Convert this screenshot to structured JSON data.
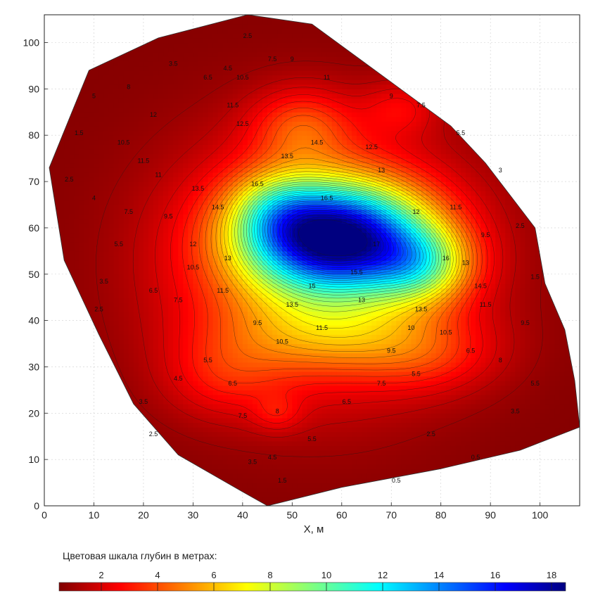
{
  "chart_data": {
    "type": "heatmap",
    "subtype": "filled-contour",
    "xlabel": "X, м",
    "ylabel": "",
    "xlim": [
      0,
      108
    ],
    "ylim": [
      0,
      106
    ],
    "x_ticks": [
      0,
      10,
      20,
      30,
      40,
      50,
      60,
      70,
      80,
      90,
      100
    ],
    "y_ticks": [
      0,
      10,
      20,
      30,
      40,
      50,
      60,
      70,
      80,
      90,
      100
    ],
    "grid": true,
    "colormap": "jet",
    "colorbar": {
      "title": "Цветовая шкала глубин в метрах:",
      "range": [
        0.5,
        18.5
      ],
      "ticks": [
        2,
        4,
        6,
        8,
        10,
        12,
        14,
        16,
        18
      ]
    },
    "boundary": [
      [
        41,
        106
      ],
      [
        54,
        104
      ],
      [
        82,
        82
      ],
      [
        89,
        74
      ],
      [
        99,
        60
      ],
      [
        101,
        48
      ],
      [
        105,
        38
      ],
      [
        107,
        27
      ],
      [
        108,
        17
      ],
      [
        96,
        12
      ],
      [
        80,
        8
      ],
      [
        60,
        4
      ],
      [
        45,
        0
      ],
      [
        40,
        3
      ],
      [
        27,
        11
      ],
      [
        18,
        22
      ],
      [
        11,
        37
      ],
      [
        4,
        53
      ],
      [
        1,
        73
      ],
      [
        9,
        94
      ],
      [
        23,
        101
      ]
    ],
    "depth_field": {
      "base": 0.6,
      "components": [
        {
          "x": 59,
          "y": 58,
          "sx": 17,
          "sy": 11,
          "peak": 14.5
        },
        {
          "x": 76,
          "y": 52,
          "sx": 10,
          "sy": 8,
          "peak": 5
        },
        {
          "x": 47,
          "y": 64,
          "sx": 9,
          "sy": 8,
          "peak": 3
        },
        {
          "x": 55,
          "y": 52,
          "sx": 28,
          "sy": 26,
          "peak": 5
        },
        {
          "x": 52,
          "y": 82,
          "sx": 10,
          "sy": 8,
          "peak": 2.5
        },
        {
          "x": 72,
          "y": 86,
          "sx": 8,
          "sy": 6,
          "peak": 1.5
        },
        {
          "x": 60,
          "y": 37,
          "sx": 22,
          "sy": 8,
          "peak": 2
        },
        {
          "x": 78,
          "y": 32,
          "sx": 14,
          "sy": 8,
          "peak": 1.5
        },
        {
          "x": 36,
          "y": 28,
          "sx": 12,
          "sy": 9,
          "peak": 1.5
        },
        {
          "x": 47,
          "y": 20,
          "sx": 5,
          "sy": 4,
          "peak": 1.2
        }
      ]
    },
    "contour_interval": 0.5,
    "contour_labels": [
      {
        "x": 57,
        "y": 66,
        "t": "16.5"
      },
      {
        "x": 67,
        "y": 56,
        "t": "17"
      },
      {
        "x": 81,
        "y": 53,
        "t": "16"
      },
      {
        "x": 55,
        "y": 78,
        "t": "14.5"
      },
      {
        "x": 49,
        "y": 75,
        "t": "13.5"
      },
      {
        "x": 43,
        "y": 69,
        "t": "16.5"
      },
      {
        "x": 35,
        "y": 64,
        "t": "14.5"
      },
      {
        "x": 31,
        "y": 68,
        "t": "13.5"
      },
      {
        "x": 37,
        "y": 53,
        "t": "13"
      },
      {
        "x": 30,
        "y": 56,
        "t": "12"
      },
      {
        "x": 40,
        "y": 82,
        "t": "12.5"
      },
      {
        "x": 38,
        "y": 86,
        "t": "11.5"
      },
      {
        "x": 40,
        "y": 92,
        "t": "10.5"
      },
      {
        "x": 50,
        "y": 96,
        "t": "9"
      },
      {
        "x": 57,
        "y": 92,
        "t": "11"
      },
      {
        "x": 70,
        "y": 88,
        "t": "9"
      },
      {
        "x": 76,
        "y": 86,
        "t": "7.5"
      },
      {
        "x": 84,
        "y": 80,
        "t": "5.5"
      },
      {
        "x": 92,
        "y": 72,
        "t": "3"
      },
      {
        "x": 96,
        "y": 60,
        "t": "2.5"
      },
      {
        "x": 99,
        "y": 49,
        "t": "1.5"
      },
      {
        "x": 97,
        "y": 39,
        "t": "9.5"
      },
      {
        "x": 89,
        "y": 43,
        "t": "11.5"
      },
      {
        "x": 85,
        "y": 52,
        "t": "13"
      },
      {
        "x": 89,
        "y": 58,
        "t": "9.5"
      },
      {
        "x": 83,
        "y": 64,
        "t": "11.5"
      },
      {
        "x": 75,
        "y": 63,
        "t": "12"
      },
      {
        "x": 68,
        "y": 72,
        "t": "13"
      },
      {
        "x": 66,
        "y": 77,
        "t": "12.5"
      },
      {
        "x": 64,
        "y": 44,
        "t": "13"
      },
      {
        "x": 56,
        "y": 38,
        "t": "11.5"
      },
      {
        "x": 48,
        "y": 35,
        "t": "10.5"
      },
      {
        "x": 43,
        "y": 39,
        "t": "9.5"
      },
      {
        "x": 36,
        "y": 46,
        "t": "11.5"
      },
      {
        "x": 30,
        "y": 51,
        "t": "10.5"
      },
      {
        "x": 27,
        "y": 44,
        "t": "7.5"
      },
      {
        "x": 22,
        "y": 46,
        "t": "6.5"
      },
      {
        "x": 25,
        "y": 62,
        "t": "9.5"
      },
      {
        "x": 23,
        "y": 71,
        "t": "11"
      },
      {
        "x": 20,
        "y": 74,
        "t": "11.5"
      },
      {
        "x": 16,
        "y": 78,
        "t": "10.5"
      },
      {
        "x": 17,
        "y": 63,
        "t": "7.5"
      },
      {
        "x": 15,
        "y": 56,
        "t": "5.5"
      },
      {
        "x": 12,
        "y": 48,
        "t": "3.5"
      },
      {
        "x": 11,
        "y": 42,
        "t": "2.5"
      },
      {
        "x": 10,
        "y": 66,
        "t": "4"
      },
      {
        "x": 5,
        "y": 70,
        "t": "2.5"
      },
      {
        "x": 7,
        "y": 80,
        "t": "1.5"
      },
      {
        "x": 10,
        "y": 88,
        "t": "5"
      },
      {
        "x": 17,
        "y": 90,
        "t": "8"
      },
      {
        "x": 22,
        "y": 84,
        "t": "12"
      },
      {
        "x": 26,
        "y": 95,
        "t": "3.5"
      },
      {
        "x": 33,
        "y": 92,
        "t": "6.5"
      },
      {
        "x": 41,
        "y": 101,
        "t": "2.5"
      },
      {
        "x": 46,
        "y": 96,
        "t": "7.5"
      },
      {
        "x": 37,
        "y": 94,
        "t": "4.5"
      },
      {
        "x": 20,
        "y": 22,
        "t": "3.5"
      },
      {
        "x": 22,
        "y": 15,
        "t": "2.5"
      },
      {
        "x": 27,
        "y": 27,
        "t": "4.5"
      },
      {
        "x": 33,
        "y": 31,
        "t": "5.5"
      },
      {
        "x": 38,
        "y": 26,
        "t": "6.5"
      },
      {
        "x": 40,
        "y": 19,
        "t": "7.5"
      },
      {
        "x": 47,
        "y": 20,
        "t": "8"
      },
      {
        "x": 54,
        "y": 14,
        "t": "5.5"
      },
      {
        "x": 46,
        "y": 10,
        "t": "4.5"
      },
      {
        "x": 42,
        "y": 9,
        "t": "3.5"
      },
      {
        "x": 48,
        "y": 5,
        "t": "1.5"
      },
      {
        "x": 61,
        "y": 22,
        "t": "6.5"
      },
      {
        "x": 68,
        "y": 26,
        "t": "7.5"
      },
      {
        "x": 75,
        "y": 28,
        "t": "5.5"
      },
      {
        "x": 78,
        "y": 15,
        "t": "2.5"
      },
      {
        "x": 71,
        "y": 5,
        "t": "0.5"
      },
      {
        "x": 87,
        "y": 10,
        "t": "0.5"
      },
      {
        "x": 95,
        "y": 20,
        "t": "3.5"
      },
      {
        "x": 99,
        "y": 26,
        "t": "5.5"
      },
      {
        "x": 92,
        "y": 31,
        "t": "8"
      },
      {
        "x": 86,
        "y": 33,
        "t": "6.5"
      },
      {
        "x": 81,
        "y": 37,
        "t": "10.5"
      },
      {
        "x": 74,
        "y": 38,
        "t": "10"
      },
      {
        "x": 70,
        "y": 33,
        "t": "9.5"
      },
      {
        "x": 88,
        "y": 47,
        "t": "14.5"
      },
      {
        "x": 76,
        "y": 42,
        "t": "13.5"
      },
      {
        "x": 63,
        "y": 50,
        "t": "15.5"
      },
      {
        "x": 54,
        "y": 47,
        "t": "15"
      },
      {
        "x": 50,
        "y": 43,
        "t": "13.5"
      }
    ]
  }
}
